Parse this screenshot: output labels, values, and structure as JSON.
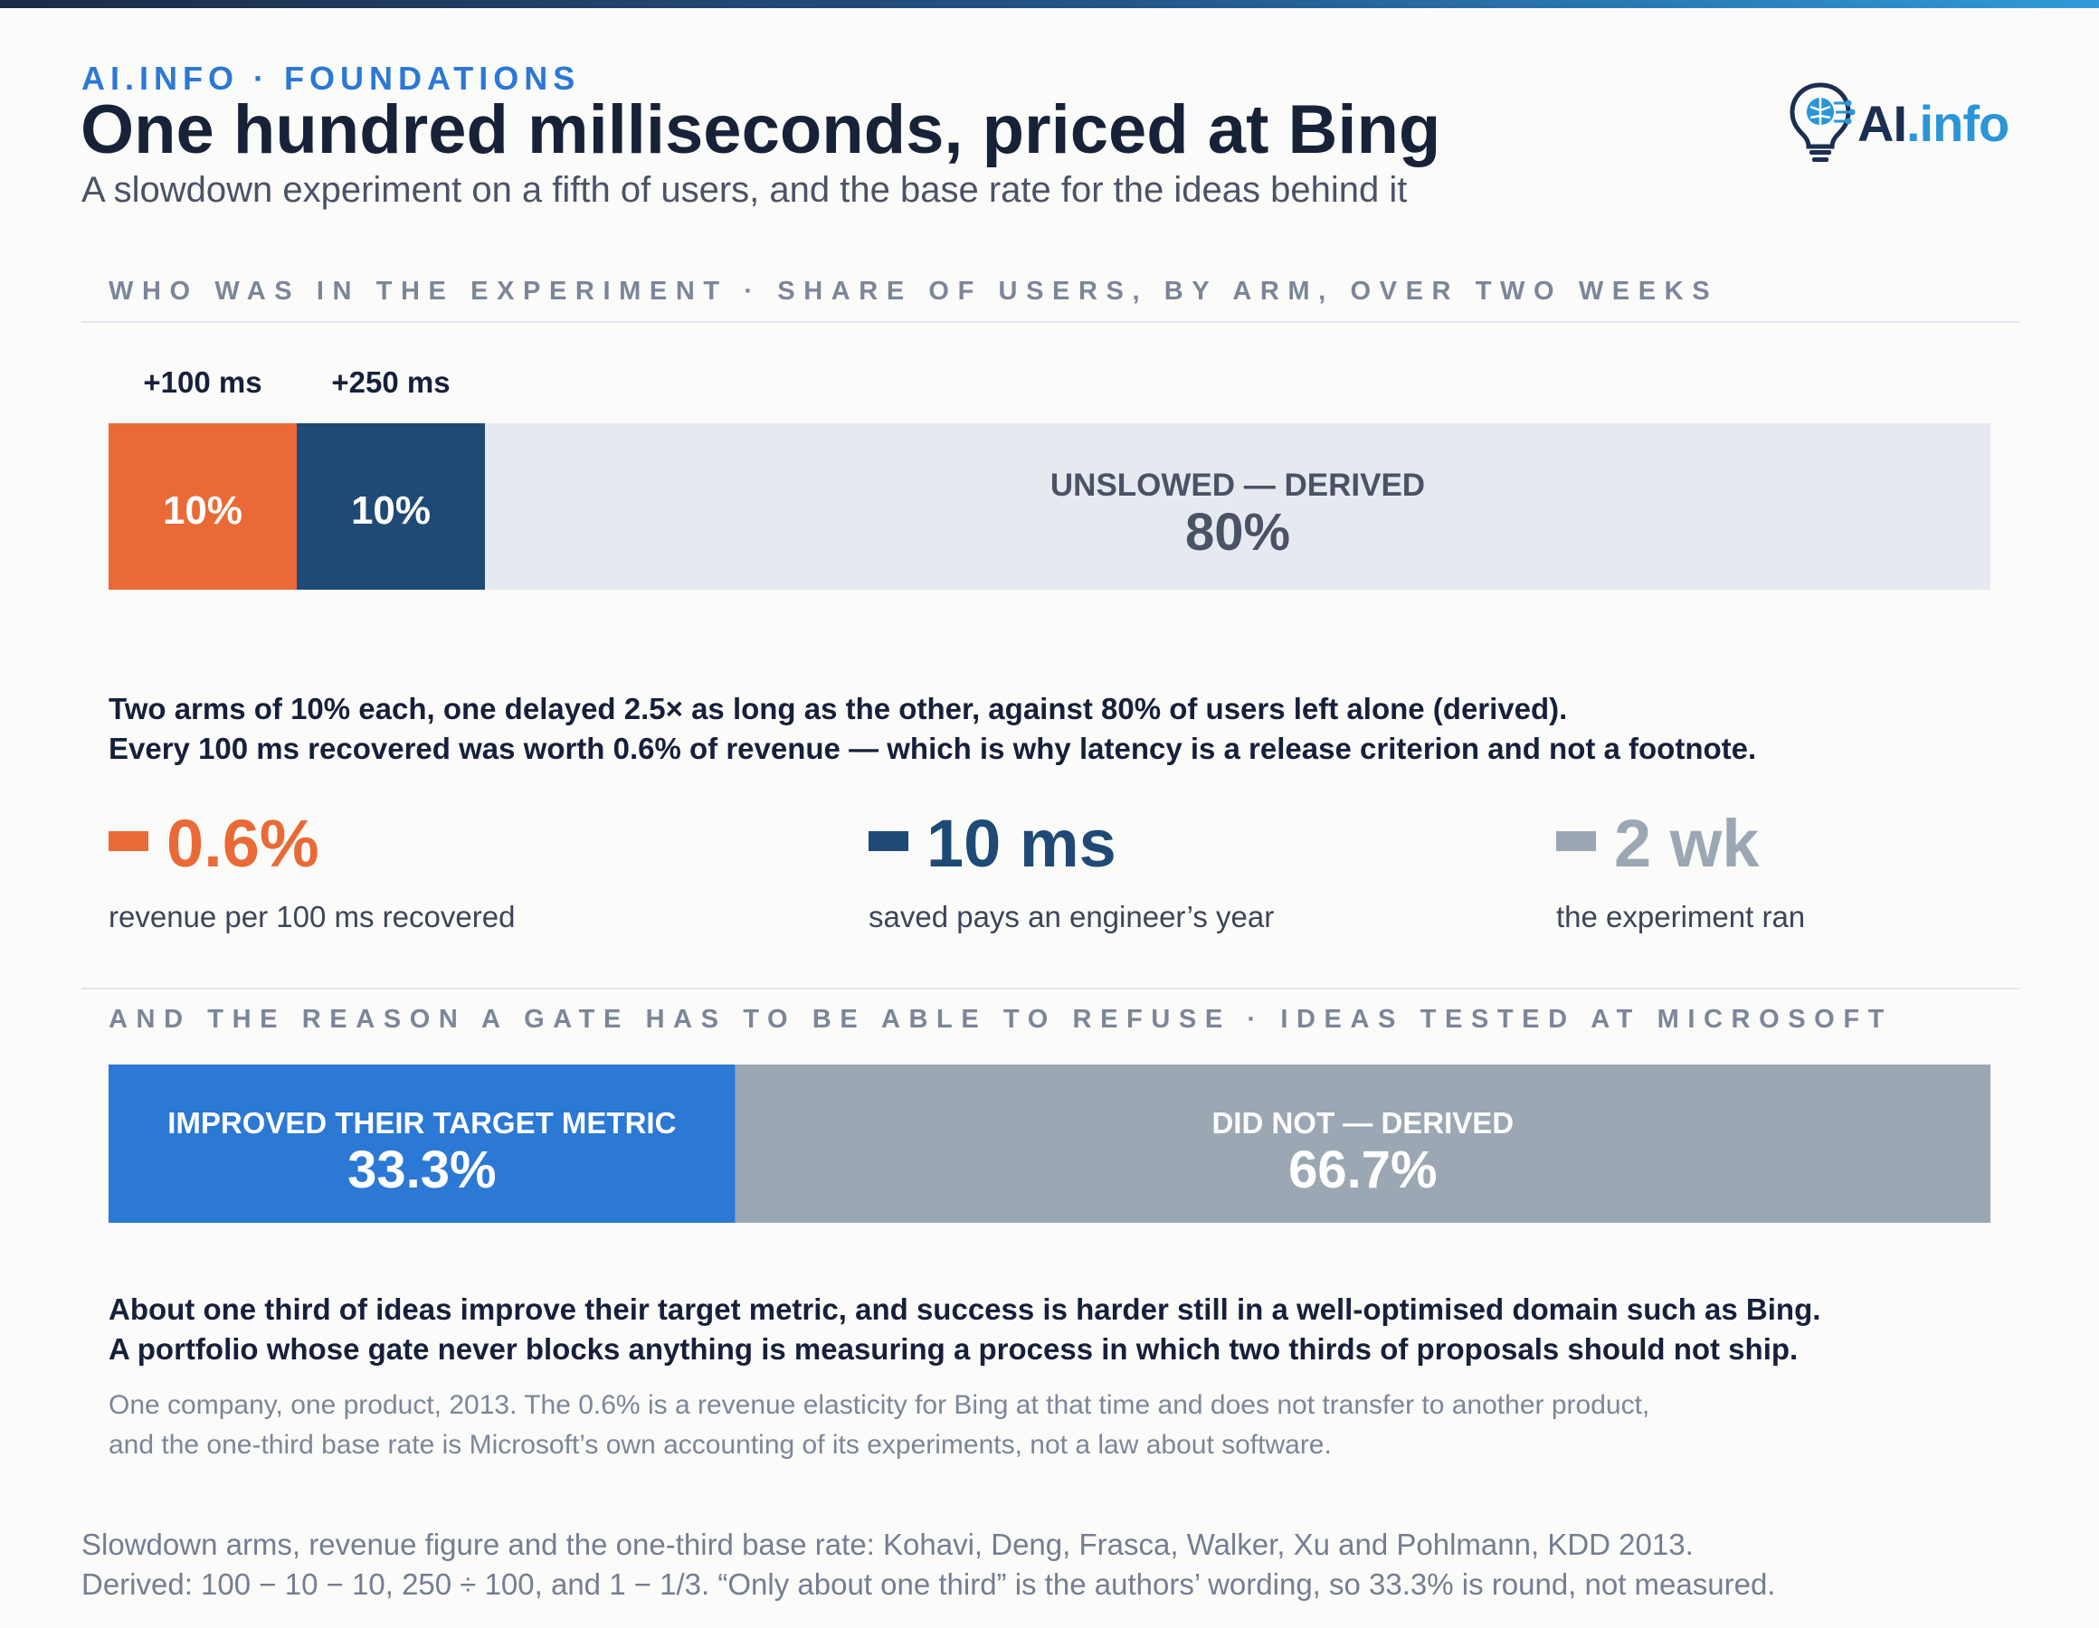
{
  "header": {
    "kicker": "AI.INFO · FOUNDATIONS",
    "title": "One hundred milliseconds, priced at Bing",
    "subtitle": "A slowdown experiment on a fifth of users, and the base rate for the ideas behind it",
    "logo_ai": "AI",
    "logo_info": ".info"
  },
  "colors": {
    "orange": "#e96a36",
    "navy": "#1f4a75",
    "light_gray": "#e6e9ef",
    "blue": "#2b78d5",
    "slate": "#9ca7b4"
  },
  "chart_data": [
    {
      "type": "bar",
      "orientation": "horizontal-stacked",
      "title": "WHO WAS IN THE EXPERIMENT · SHARE OF USERS, BY ARM, OVER TWO WEEKS",
      "segments": [
        {
          "name": "+100 ms",
          "value": 10,
          "label": "10%",
          "color": "#e96a36"
        },
        {
          "name": "+250 ms",
          "value": 10,
          "label": "10%",
          "color": "#1f4a75"
        },
        {
          "name": "UNSLOWED — DERIVED",
          "value": 80,
          "label": "80%",
          "color": "#e6e9ef"
        }
      ],
      "total": 100
    },
    {
      "type": "bar",
      "orientation": "horizontal-stacked",
      "title": "AND THE REASON A GATE HAS TO BE ABLE TO REFUSE · IDEAS TESTED AT MICROSOFT",
      "segments": [
        {
          "name": "IMPROVED THEIR TARGET METRIC",
          "value": 33.3,
          "label": "33.3%",
          "color": "#2b78d5"
        },
        {
          "name": "DID NOT — DERIVED",
          "value": 66.7,
          "label": "66.7%",
          "color": "#9ca7b4"
        }
      ],
      "total": 100
    }
  ],
  "paragraph1": [
    "Two arms of 10% each, one delayed 2.5× as long as the other, against 80% of users left alone (derived).",
    "Every 100 ms recovered was worth 0.6% of revenue — which is why latency is a release criterion and not a footnote."
  ],
  "stats": [
    {
      "value": "0.6%",
      "caption": "revenue per 100 ms recovered",
      "color": "#e96a36"
    },
    {
      "value": "10 ms",
      "caption": "saved pays an engineer’s year",
      "color": "#1f4a75"
    },
    {
      "value": "2 wk",
      "caption": "the experiment ran",
      "color": "#9ca7b4"
    }
  ],
  "paragraph2": [
    "About one third of ideas improve their target metric, and success is harder still in a well-optimised domain such as Bing.",
    "A portfolio whose gate never blocks anything is measuring a process in which two thirds of proposals should not ship."
  ],
  "caveat": [
    "One company, one product, 2013. The 0.6% is a revenue elasticity for Bing at that time and does not transfer to another product,",
    "and the one-third base rate is Microsoft’s own accounting of its experiments, not a law about software."
  ],
  "source": [
    "Slowdown arms, revenue figure and the one-third base rate: Kohavi, Deng, Frasca, Walker, Xu and Pohlmann, KDD 2013.",
    "Derived: 100 − 10 − 10, 250 ÷ 100, and 1 − 1/3. “Only about one third” is the authors’ wording, so 33.3% is round, not measured."
  ]
}
